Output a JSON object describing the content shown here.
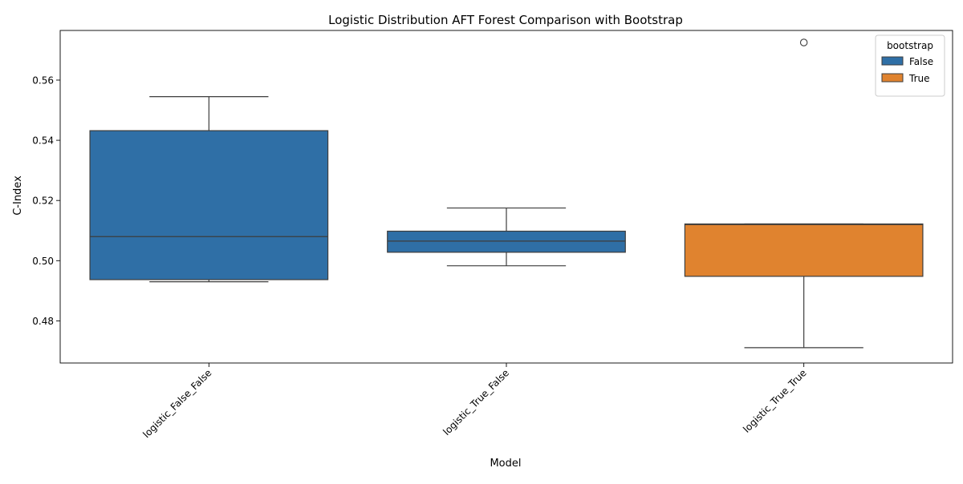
{
  "chart_data": {
    "type": "box",
    "title": "Logistic Distribution AFT Forest Comparison with Bootstrap",
    "xlabel": "Model",
    "ylabel": "C-Index",
    "ylim": [
      0.466,
      0.5765
    ],
    "yticks": [
      0.48,
      0.5,
      0.52,
      0.54,
      0.56
    ],
    "ytick_labels": [
      "0.48",
      "0.50",
      "0.52",
      "0.54",
      "0.56"
    ],
    "categories": [
      "logistic_False_False",
      "logistic_True_False",
      "logistic_True_True"
    ],
    "legend": {
      "title": "bootstrap",
      "placement": "top-right",
      "entries": [
        {
          "label": "False",
          "color": "#2f6fa6"
        },
        {
          "label": "True",
          "color": "#e0832f"
        }
      ]
    },
    "boxes": [
      {
        "category": "logistic_False_False",
        "bootstrap": "False",
        "whisker_low": 0.493,
        "q1": 0.4937,
        "median": 0.508,
        "q3": 0.5432,
        "whisker_high": 0.5545,
        "outliers": []
      },
      {
        "category": "logistic_True_False",
        "bootstrap": "False",
        "whisker_low": 0.4983,
        "q1": 0.5028,
        "median": 0.5065,
        "q3": 0.5098,
        "whisker_high": 0.5175,
        "outliers": []
      },
      {
        "category": "logistic_True_True",
        "bootstrap": "True",
        "whisker_low": 0.4711,
        "q1": 0.4948,
        "median": 0.512,
        "q3": 0.5122,
        "whisker_high": 0.5122,
        "outliers": [
          0.5725
        ]
      }
    ],
    "grid": false
  }
}
